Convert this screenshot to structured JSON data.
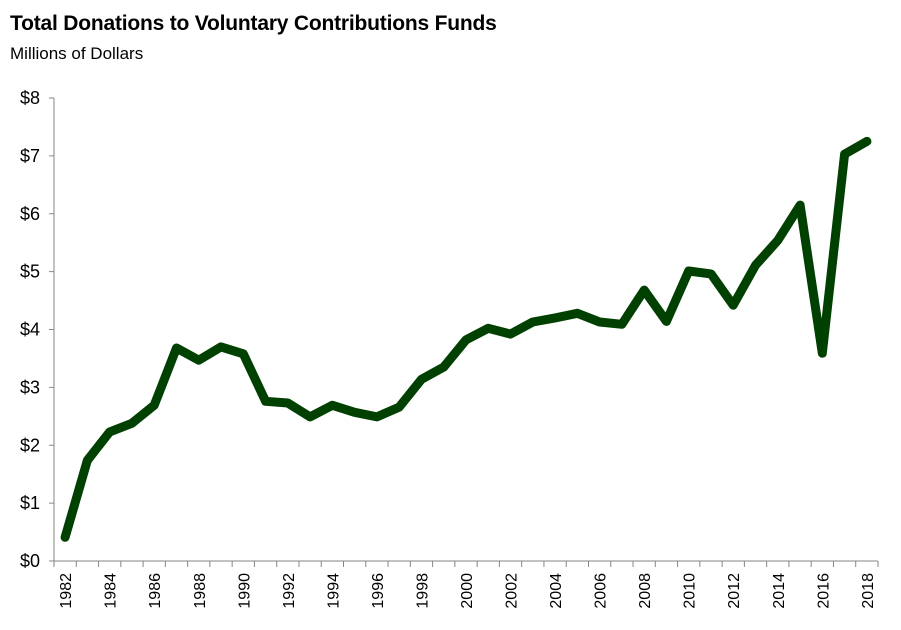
{
  "chart_data": {
    "type": "line",
    "title": "Total Donations to Voluntary Contributions Funds",
    "subtitle": "Millions  of Dollars",
    "xlabel": "",
    "ylabel": "",
    "ylim": [
      0,
      8
    ],
    "yticks": [
      0,
      1,
      2,
      3,
      4,
      5,
      6,
      7,
      8
    ],
    "ytick_labels": [
      "$0",
      "$1",
      "$2",
      "$3",
      "$4",
      "$5",
      "$6",
      "$7",
      "$8"
    ],
    "xtick_labels": [
      "1982",
      "1984",
      "1986",
      "1988",
      "1990",
      "1992",
      "1994",
      "1996",
      "1998",
      "2000",
      "2002",
      "2004",
      "2006",
      "2008",
      "2010",
      "2012",
      "2014",
      "2016",
      "2018"
    ],
    "grid": false,
    "legend": "none",
    "line_color": "#004000",
    "x": [
      1982,
      1983,
      1984,
      1985,
      1986,
      1987,
      1988,
      1989,
      1990,
      1991,
      1992,
      1993,
      1994,
      1995,
      1996,
      1997,
      1998,
      1999,
      2000,
      2001,
      2002,
      2003,
      2004,
      2005,
      2006,
      2007,
      2008,
      2009,
      2010,
      2011,
      2012,
      2013,
      2014,
      2015,
      2016,
      2017,
      2018
    ],
    "series": [
      {
        "name": "Total Donations",
        "values": [
          0.41,
          1.74,
          2.23,
          2.38,
          2.69,
          3.68,
          3.47,
          3.7,
          3.58,
          2.76,
          2.73,
          2.49,
          2.69,
          2.57,
          2.49,
          2.66,
          3.14,
          3.35,
          3.82,
          4.02,
          3.92,
          4.13,
          4.2,
          4.28,
          4.13,
          4.09,
          4.68,
          4.14,
          5.01,
          4.96,
          4.42,
          5.11,
          5.54,
          6.15,
          3.59,
          7.03,
          7.25
        ]
      }
    ]
  }
}
